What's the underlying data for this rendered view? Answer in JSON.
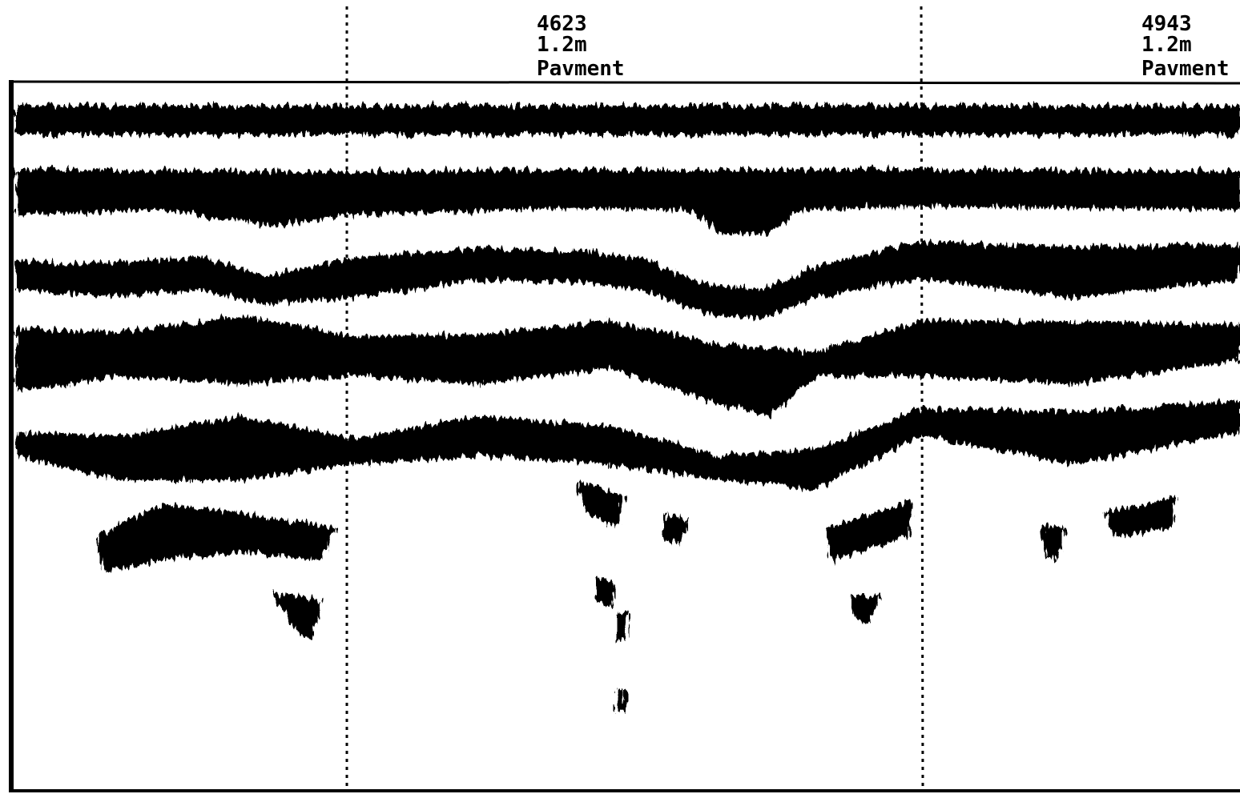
{
  "markers": [
    {
      "station": "4623",
      "depth": "1.2m",
      "label": "Pavment"
    },
    {
      "station": "4943",
      "depth": "1.2m",
      "label": "Pavment"
    }
  ]
}
